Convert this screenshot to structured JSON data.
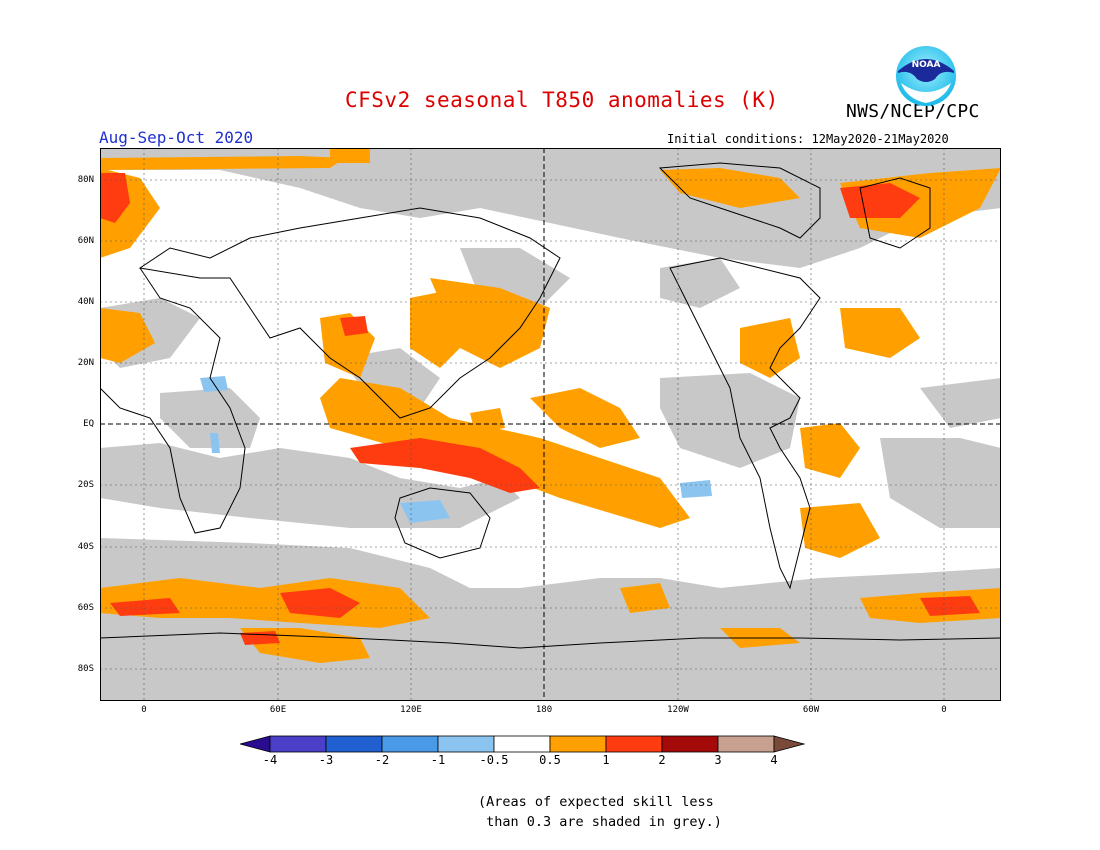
{
  "title": "CFSv2 seasonal T850 anomalies (K)",
  "organization": "NWS/NCEP/CPC",
  "period": "Aug-Sep-Oct 2020",
  "initial_conditions": "Initial conditions: 12May2020-21May2020",
  "logo_text": "NOAA",
  "lat_labels": [
    "80N",
    "60N",
    "40N",
    "20N",
    "EQ",
    "20S",
    "40S",
    "60S",
    "80S"
  ],
  "lon_labels": [
    "0",
    "60E",
    "120E",
    "180",
    "120W",
    "60W",
    "0"
  ],
  "legend": {
    "labels": [
      "-4",
      "-3",
      "-2",
      "-1",
      "-0.5",
      "0.5",
      "1",
      "2",
      "3",
      "4"
    ],
    "colors": [
      "#2a0c91",
      "#4b3ec7",
      "#2060d0",
      "#4a9ae8",
      "#8cc4f0",
      "#ffffff",
      "#ffa000",
      "#ff3c10",
      "#a50a0a",
      "#c8a090",
      "#7a4a38"
    ]
  },
  "note_line1": "(Areas of expected skill less",
  "note_line2": " than 0.3 are shaded in grey.)",
  "colors": {
    "title": "#dd0000",
    "subtitle": "#2030d0",
    "grey_mask": "#c8c8c8",
    "anom_05_1": "#ffa000",
    "anom_1_2": "#ff3c10",
    "cold": "#8cc4f0"
  }
}
